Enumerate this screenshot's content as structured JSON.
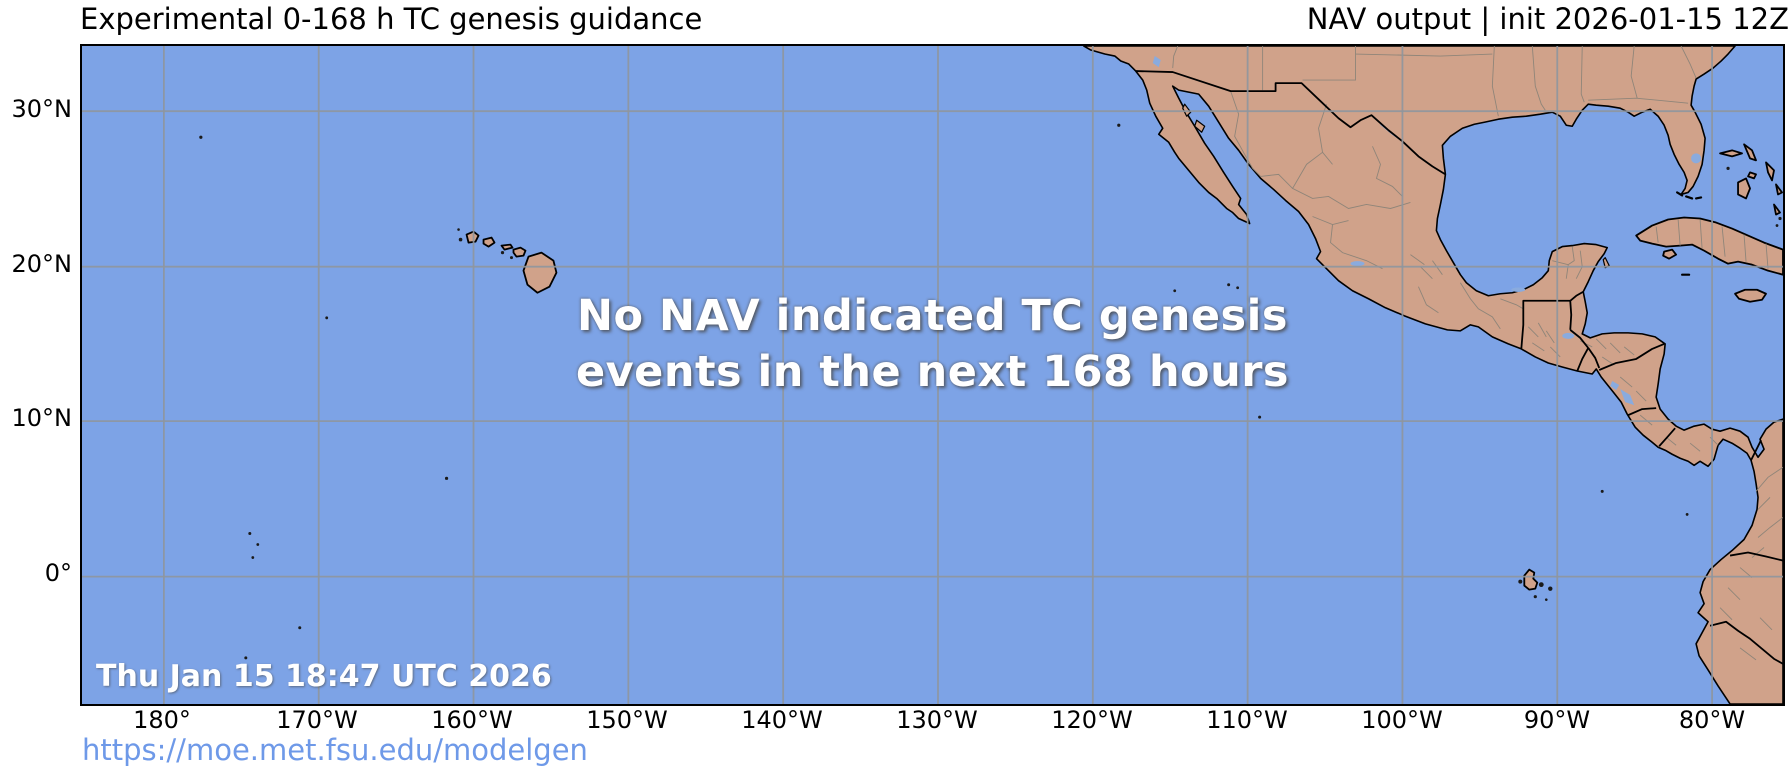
{
  "header": {
    "left_title": "Experimental 0-168 h TC genesis guidance",
    "right_title": "NAV output | init 2026-01-15 12Z"
  },
  "map": {
    "message_line1": "No NAV indicated TC genesis",
    "message_line2": "events in the next 168 hours",
    "timestamp": "Thu Jan 15 18:47 UTC 2026"
  },
  "axes": {
    "lon_ticks": [
      "180°",
      "170°W",
      "160°W",
      "150°W",
      "140°W",
      "130°W",
      "120°W",
      "110°W",
      "100°W",
      "90°W",
      "80°W"
    ],
    "lat_ticks": [
      "30°N",
      "20°N",
      "10°N",
      "0°"
    ]
  },
  "footer": {
    "url": "https://moe.met.fsu.edu/modelgen"
  },
  "colors": {
    "ocean": "#7da3e6",
    "land": "#d0a28a",
    "lake": "#8aabde",
    "grid": "#8f969e",
    "state_border": "#8f8579",
    "url": "#6e99e8",
    "message": "#ffffff"
  }
}
